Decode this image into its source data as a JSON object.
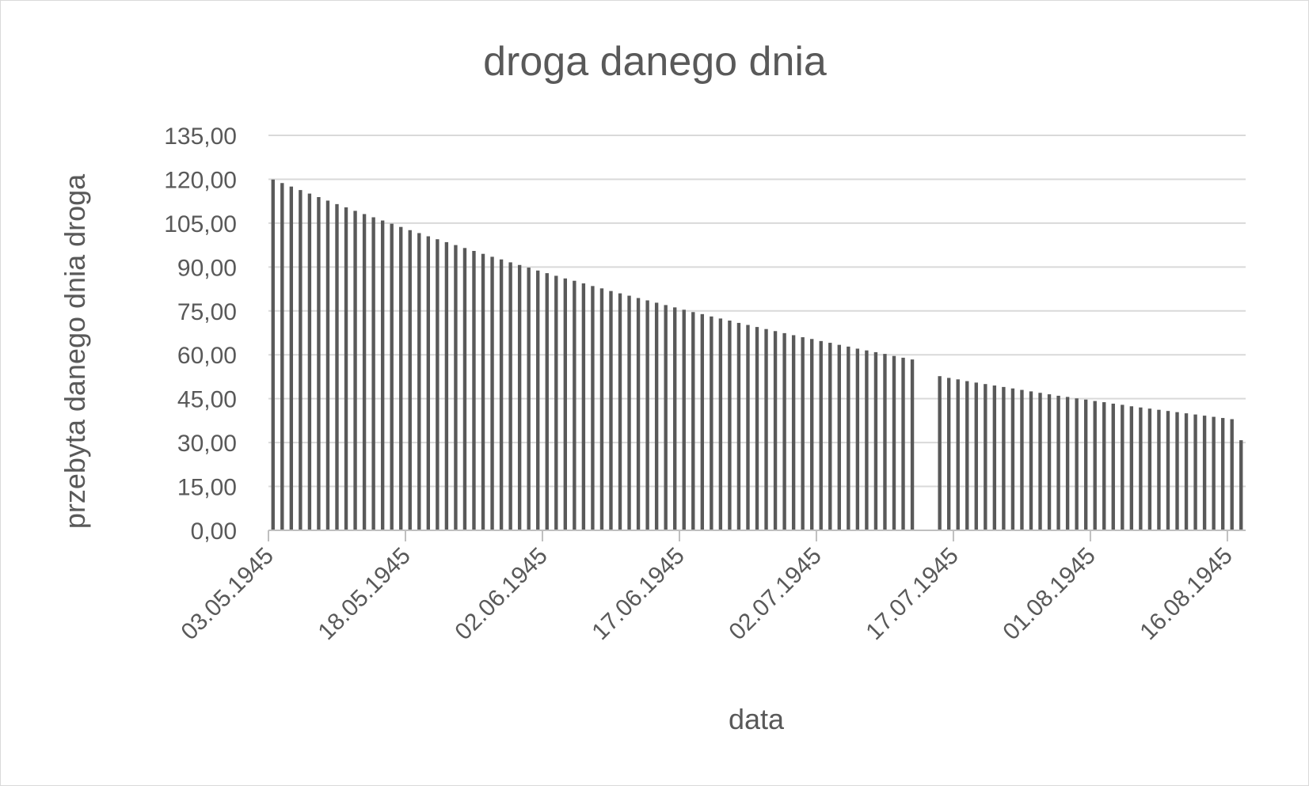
{
  "chart_data": {
    "type": "bar",
    "title": "droga danego dnia",
    "xlabel": "data",
    "ylabel": "przebyta danego dnia droga",
    "ylim": [
      0,
      135
    ],
    "yticks": [
      "0,00",
      "15,00",
      "30,00",
      "45,00",
      "60,00",
      "75,00",
      "90,00",
      "105,00",
      "120,00",
      "135,00"
    ],
    "xtick_labels": [
      "03.05.1945",
      "18.05.1945",
      "02.06.1945",
      "17.06.1945",
      "02.07.1945",
      "17.07.1945",
      "01.08.1945",
      "16.08.1945"
    ],
    "grid": true,
    "legend": "none",
    "bar_color": "#595959",
    "categories": [
      "03.05.1945",
      "04.05.1945",
      "05.05.1945",
      "06.05.1945",
      "07.05.1945",
      "08.05.1945",
      "09.05.1945",
      "10.05.1945",
      "11.05.1945",
      "12.05.1945",
      "13.05.1945",
      "14.05.1945",
      "15.05.1945",
      "16.05.1945",
      "17.05.1945",
      "18.05.1945",
      "19.05.1945",
      "20.05.1945",
      "21.05.1945",
      "22.05.1945",
      "23.05.1945",
      "24.05.1945",
      "25.05.1945",
      "26.05.1945",
      "27.05.1945",
      "28.05.1945",
      "29.05.1945",
      "30.05.1945",
      "31.05.1945",
      "01.06.1945",
      "02.06.1945",
      "03.06.1945",
      "04.06.1945",
      "05.06.1945",
      "06.06.1945",
      "07.06.1945",
      "08.06.1945",
      "09.06.1945",
      "10.06.1945",
      "11.06.1945",
      "12.06.1945",
      "13.06.1945",
      "14.06.1945",
      "15.06.1945",
      "16.06.1945",
      "17.06.1945",
      "18.06.1945",
      "19.06.1945",
      "20.06.1945",
      "21.06.1945",
      "22.06.1945",
      "23.06.1945",
      "24.06.1945",
      "25.06.1945",
      "26.06.1945",
      "27.06.1945",
      "28.06.1945",
      "29.06.1945",
      "30.06.1945",
      "01.07.1945",
      "02.07.1945",
      "03.07.1945",
      "04.07.1945",
      "05.07.1945",
      "06.07.1945",
      "07.07.1945",
      "08.07.1945",
      "09.07.1945",
      "10.07.1945",
      "11.07.1945",
      "12.07.1945",
      "13.07.1945",
      "14.07.1945",
      "15.07.1945",
      "16.07.1945",
      "17.07.1945",
      "18.07.1945",
      "19.07.1945",
      "20.07.1945",
      "21.07.1945",
      "22.07.1945",
      "23.07.1945",
      "24.07.1945",
      "25.07.1945",
      "26.07.1945",
      "27.07.1945",
      "28.07.1945",
      "29.07.1945",
      "30.07.1945",
      "31.07.1945",
      "01.08.1945",
      "02.08.1945",
      "03.08.1945",
      "04.08.1945",
      "05.08.1945",
      "06.08.1945",
      "07.08.1945",
      "08.08.1945",
      "09.08.1945",
      "10.08.1945",
      "11.08.1945",
      "12.08.1945",
      "13.08.1945",
      "14.08.1945",
      "15.08.1945",
      "16.08.1945",
      "17.08.1945"
    ],
    "values": [
      119.9,
      118.7,
      117.5,
      116.3,
      115.1,
      113.9,
      112.7,
      111.5,
      110.4,
      109.2,
      108.1,
      107.0,
      105.9,
      104.8,
      103.7,
      102.6,
      101.6,
      100.5,
      99.5,
      98.5,
      97.5,
      96.5,
      95.5,
      94.5,
      93.5,
      92.6,
      91.6,
      90.7,
      89.8,
      88.8,
      87.9,
      87.0,
      86.1,
      85.3,
      84.4,
      83.5,
      82.7,
      81.8,
      81.0,
      80.2,
      79.4,
      78.6,
      77.8,
      77.0,
      76.2,
      75.4,
      74.6,
      73.9,
      73.1,
      72.4,
      71.7,
      70.9,
      70.2,
      69.5,
      68.8,
      68.1,
      67.4,
      66.7,
      66.0,
      65.4,
      64.7,
      64.1,
      63.4,
      62.8,
      62.1,
      61.5,
      60.9,
      60.3,
      59.6,
      59.0,
      58.4,
      null,
      null,
      52.7,
      52.1,
      51.6,
      51.0,
      50.5,
      50.0,
      49.5,
      49.0,
      48.5,
      48.0,
      47.5,
      47.0,
      46.5,
      46.0,
      45.6,
      45.1,
      44.7,
      44.2,
      43.8,
      43.3,
      42.9,
      42.4,
      42.0,
      41.6,
      41.2,
      40.8,
      40.4,
      40.0,
      39.6,
      39.2,
      38.8,
      38.4,
      38.0,
      30.8
    ]
  }
}
